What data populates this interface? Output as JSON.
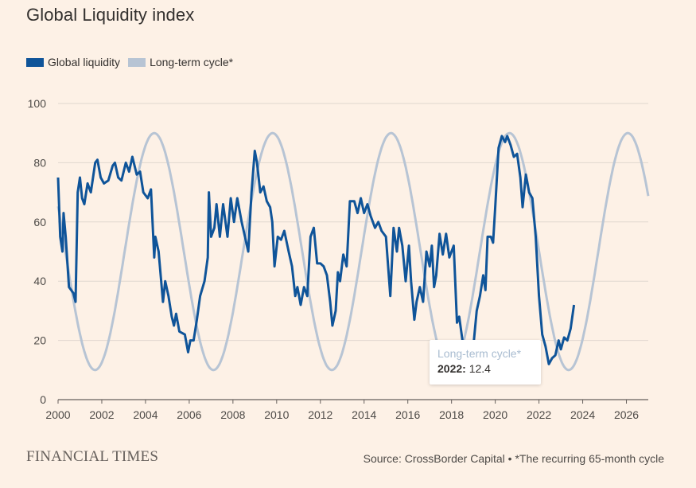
{
  "title": "Global Liquidity index",
  "legend": {
    "liquidity_label": "Global liquidity",
    "cycle_label": "Long-term cycle*"
  },
  "colors": {
    "background": "#fdf1e6",
    "liquidity": "#0f5499",
    "cycle": "#b7c4d4",
    "grid": "#e0d7cf",
    "axis": "#66605c"
  },
  "tooltip": {
    "series": "Long-term cycle*",
    "year": "2022:",
    "value": "12.4"
  },
  "footer": {
    "brand": "FINANCIAL TIMES",
    "source": "Source: CrossBorder Capital • *The recurring 65-month cycle"
  },
  "chart_data": {
    "type": "line",
    "xlim": [
      2000,
      2027
    ],
    "ylim": [
      0,
      100
    ],
    "x_ticks": [
      "2000",
      "2002",
      "2004",
      "2006",
      "2008",
      "2010",
      "2012",
      "2014",
      "2016",
      "2018",
      "2020",
      "2022",
      "2024",
      "2026"
    ],
    "y_ticks": [
      "0",
      "20",
      "40",
      "60",
      "80",
      "100"
    ],
    "grid": true,
    "legend_position": "top-left",
    "series": [
      {
        "name": "Global liquidity",
        "points": [
          [
            2000.0,
            75
          ],
          [
            2000.1,
            55
          ],
          [
            2000.2,
            50
          ],
          [
            2000.25,
            63
          ],
          [
            2000.35,
            55
          ],
          [
            2000.5,
            38
          ],
          [
            2000.7,
            36
          ],
          [
            2000.8,
            33
          ],
          [
            2000.9,
            70
          ],
          [
            2001.0,
            75
          ],
          [
            2001.1,
            68
          ],
          [
            2001.2,
            66
          ],
          [
            2001.35,
            73
          ],
          [
            2001.5,
            70
          ],
          [
            2001.7,
            80
          ],
          [
            2001.8,
            81
          ],
          [
            2001.95,
            75
          ],
          [
            2002.1,
            73
          ],
          [
            2002.3,
            74
          ],
          [
            2002.5,
            79
          ],
          [
            2002.6,
            80
          ],
          [
            2002.75,
            75
          ],
          [
            2002.9,
            74
          ],
          [
            2003.1,
            80
          ],
          [
            2003.25,
            77
          ],
          [
            2003.4,
            82
          ],
          [
            2003.6,
            76
          ],
          [
            2003.75,
            77
          ],
          [
            2003.9,
            70
          ],
          [
            2004.1,
            68
          ],
          [
            2004.25,
            71
          ],
          [
            2004.4,
            48
          ],
          [
            2004.45,
            55
          ],
          [
            2004.6,
            50
          ],
          [
            2004.8,
            33
          ],
          [
            2004.9,
            40
          ],
          [
            2005.05,
            35
          ],
          [
            2005.2,
            28
          ],
          [
            2005.3,
            25
          ],
          [
            2005.4,
            29
          ],
          [
            2005.55,
            23
          ],
          [
            2005.8,
            22
          ],
          [
            2005.95,
            16
          ],
          [
            2006.05,
            20
          ],
          [
            2006.2,
            20
          ],
          [
            2006.35,
            27
          ],
          [
            2006.5,
            35
          ],
          [
            2006.7,
            40
          ],
          [
            2006.85,
            48
          ],
          [
            2006.9,
            70
          ],
          [
            2007.0,
            55
          ],
          [
            2007.15,
            58
          ],
          [
            2007.25,
            66
          ],
          [
            2007.4,
            55
          ],
          [
            2007.55,
            66
          ],
          [
            2007.75,
            55
          ],
          [
            2007.9,
            68
          ],
          [
            2008.05,
            60
          ],
          [
            2008.2,
            68
          ],
          [
            2008.4,
            60
          ],
          [
            2008.55,
            55
          ],
          [
            2008.7,
            50
          ],
          [
            2008.85,
            70
          ],
          [
            2009.0,
            84
          ],
          [
            2009.1,
            80
          ],
          [
            2009.25,
            70
          ],
          [
            2009.4,
            72
          ],
          [
            2009.55,
            67
          ],
          [
            2009.7,
            65
          ],
          [
            2009.8,
            60
          ],
          [
            2009.9,
            45
          ],
          [
            2010.05,
            55
          ],
          [
            2010.2,
            54
          ],
          [
            2010.35,
            57
          ],
          [
            2010.55,
            50
          ],
          [
            2010.7,
            45
          ],
          [
            2010.85,
            35
          ],
          [
            2010.95,
            38
          ],
          [
            2011.1,
            32
          ],
          [
            2011.25,
            38
          ],
          [
            2011.4,
            35
          ],
          [
            2011.55,
            55
          ],
          [
            2011.7,
            58
          ],
          [
            2011.85,
            46
          ],
          [
            2012.0,
            46
          ],
          [
            2012.15,
            45
          ],
          [
            2012.3,
            42
          ],
          [
            2012.45,
            33
          ],
          [
            2012.55,
            25
          ],
          [
            2012.7,
            30
          ],
          [
            2012.8,
            43
          ],
          [
            2012.9,
            40
          ],
          [
            2013.05,
            49
          ],
          [
            2013.2,
            45
          ],
          [
            2013.35,
            67
          ],
          [
            2013.55,
            67
          ],
          [
            2013.7,
            63
          ],
          [
            2013.85,
            68
          ],
          [
            2014.0,
            63
          ],
          [
            2014.15,
            66
          ],
          [
            2014.3,
            62
          ],
          [
            2014.5,
            58
          ],
          [
            2014.65,
            60
          ],
          [
            2014.8,
            57
          ],
          [
            2015.0,
            55
          ],
          [
            2015.2,
            35
          ],
          [
            2015.35,
            58
          ],
          [
            2015.5,
            50
          ],
          [
            2015.6,
            58
          ],
          [
            2015.75,
            52
          ],
          [
            2015.9,
            40
          ],
          [
            2016.05,
            52
          ],
          [
            2016.15,
            40
          ],
          [
            2016.3,
            27
          ],
          [
            2016.4,
            33
          ],
          [
            2016.55,
            38
          ],
          [
            2016.7,
            33
          ],
          [
            2016.85,
            50
          ],
          [
            2017.0,
            45
          ],
          [
            2017.1,
            52
          ],
          [
            2017.2,
            38
          ],
          [
            2017.3,
            42
          ],
          [
            2017.45,
            56
          ],
          [
            2017.6,
            49
          ],
          [
            2017.75,
            56
          ],
          [
            2017.9,
            48
          ],
          [
            2018.1,
            52
          ],
          [
            2018.25,
            26
          ],
          [
            2018.35,
            28
          ],
          [
            2018.5,
            20
          ],
          [
            2018.65,
            19
          ],
          [
            2018.8,
            13
          ],
          [
            2019.0,
            18
          ],
          [
            2019.15,
            30
          ],
          [
            2019.3,
            35
          ],
          [
            2019.45,
            42
          ],
          [
            2019.55,
            37
          ],
          [
            2019.65,
            55
          ],
          [
            2019.8,
            55
          ],
          [
            2019.9,
            53
          ],
          [
            2020.0,
            65
          ],
          [
            2020.15,
            85
          ],
          [
            2020.3,
            89
          ],
          [
            2020.45,
            87
          ],
          [
            2020.55,
            89
          ],
          [
            2020.7,
            86
          ],
          [
            2020.85,
            82
          ],
          [
            2021.0,
            83
          ],
          [
            2021.15,
            75
          ],
          [
            2021.25,
            65
          ],
          [
            2021.4,
            76
          ],
          [
            2021.55,
            70
          ],
          [
            2021.7,
            68
          ],
          [
            2021.85,
            55
          ],
          [
            2022.0,
            35
          ],
          [
            2022.15,
            22
          ],
          [
            2022.3,
            18
          ],
          [
            2022.45,
            12
          ],
          [
            2022.6,
            14
          ],
          [
            2022.75,
            15
          ],
          [
            2022.9,
            20
          ],
          [
            2023.0,
            17
          ],
          [
            2023.15,
            21
          ],
          [
            2023.3,
            20
          ],
          [
            2023.45,
            24
          ],
          [
            2023.6,
            32
          ]
        ]
      },
      {
        "name": "Long-term cycle*",
        "period_years": 5.4167,
        "amplitude": 40,
        "center": 50,
        "peak_year": 2004.4,
        "x_range": [
          2000,
          2027
        ]
      }
    ]
  }
}
